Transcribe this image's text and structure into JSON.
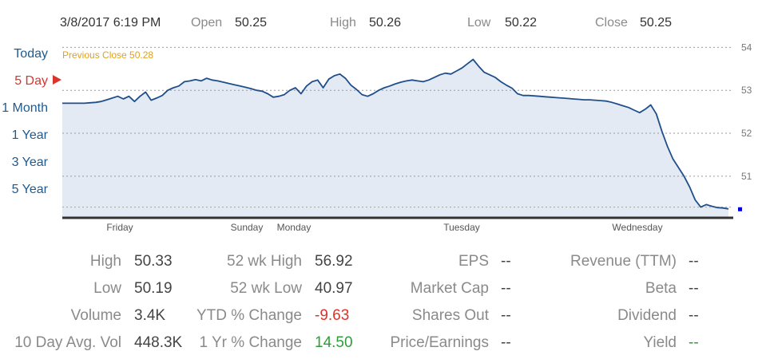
{
  "header": {
    "datetime": "3/8/2017 6:19 PM",
    "open_label": "Open",
    "open_value": "50.25",
    "high_label": "High",
    "high_value": "50.26",
    "low_label": "Low",
    "low_value": "50.22",
    "close_label": "Close",
    "close_value": "50.25"
  },
  "ranges": [
    "Today",
    "5 Day",
    "1 Month",
    "1 Year",
    "3 Year",
    "5 Year"
  ],
  "active_range": "5 Day",
  "chart_data": {
    "type": "area",
    "y_ticks": [
      "54",
      "53",
      "52",
      "51"
    ],
    "ylim": [
      50.05,
      54.1
    ],
    "x_labels": [
      "Friday",
      "Sunday",
      "Monday",
      "Tuesday",
      "Wednesday"
    ],
    "previous_close_label": "Previous Close 50.28",
    "previous_close": 50.28,
    "grid": true,
    "colors": {
      "line": "#1f4f8b",
      "fill": "#e4eaf3",
      "prev_close": "#e0a11b",
      "end_marker": "#0000dd"
    },
    "series": [
      {
        "x": [
          0,
          1,
          2,
          3,
          4,
          5,
          6,
          7,
          8,
          9,
          10,
          11,
          12,
          13,
          14,
          15,
          16,
          17,
          18,
          19,
          20,
          21,
          22,
          23,
          24,
          25,
          26,
          27,
          28,
          29,
          30,
          31,
          32,
          33,
          34,
          35,
          36,
          37,
          38,
          39,
          40,
          41,
          42,
          43,
          44,
          45,
          46,
          47,
          48,
          49,
          50,
          51,
          52,
          53,
          54,
          55,
          56,
          57,
          58,
          59,
          60,
          61,
          62,
          63,
          64,
          65,
          66,
          67,
          68,
          69,
          70,
          71,
          72,
          73,
          74,
          75,
          76,
          77,
          78,
          79,
          80,
          81,
          82,
          83,
          84,
          85,
          86,
          87,
          88,
          89,
          90,
          91,
          92,
          93,
          94,
          95,
          96,
          97,
          98,
          99,
          100,
          101,
          102,
          103,
          104,
          105,
          106,
          107,
          108,
          109,
          110,
          111,
          112,
          113,
          114,
          115,
          116,
          117,
          118,
          119,
          120
        ],
        "y": [
          52.7,
          52.7,
          52.7,
          52.7,
          52.7,
          52.71,
          52.72,
          52.74,
          52.78,
          52.82,
          52.86,
          52.8,
          52.86,
          52.74,
          52.86,
          52.96,
          52.77,
          52.82,
          52.88,
          53.0,
          53.06,
          53.1,
          53.2,
          53.22,
          53.25,
          53.22,
          53.28,
          53.24,
          53.22,
          53.19,
          53.16,
          53.13,
          53.1,
          53.07,
          53.04,
          53.0,
          52.98,
          52.92,
          52.84,
          52.86,
          52.9,
          53.0,
          53.06,
          52.92,
          53.1,
          53.2,
          53.24,
          53.06,
          53.26,
          53.34,
          53.38,
          53.28,
          53.12,
          53.02,
          52.9,
          52.86,
          52.92,
          53.0,
          53.06,
          53.1,
          53.15,
          53.19,
          53.22,
          53.24,
          53.22,
          53.2,
          53.24,
          53.3,
          53.36,
          53.4,
          53.38,
          53.45,
          53.52,
          53.62,
          53.72,
          53.56,
          53.42,
          53.36,
          53.3,
          53.2,
          53.12,
          53.05,
          52.92,
          52.88,
          52.88,
          52.87,
          52.86,
          52.85,
          52.84,
          52.83,
          52.82,
          52.81,
          52.8,
          52.79,
          52.78,
          52.78,
          52.77,
          52.76,
          52.75,
          52.72,
          52.68,
          52.64,
          52.6,
          52.54,
          52.48,
          52.56,
          52.66,
          52.45,
          52.05,
          51.7,
          51.4,
          51.2,
          51.0,
          50.75,
          50.45,
          50.28,
          50.34,
          50.3,
          50.27,
          50.26,
          50.24
        ]
      }
    ]
  },
  "stats": {
    "col1": [
      {
        "label": "High",
        "value": "50.33"
      },
      {
        "label": "Low",
        "value": "50.19"
      },
      {
        "label": "Volume",
        "value": "3.4K"
      },
      {
        "label": "10 Day Avg. Vol",
        "value": "448.3K"
      }
    ],
    "col2": [
      {
        "label": "52 wk High",
        "value": "56.92"
      },
      {
        "label": "52 wk Low",
        "value": "40.97"
      },
      {
        "label": "YTD % Change",
        "value": "-9.63"
      },
      {
        "label": "1 Yr % Change",
        "value": "14.50"
      }
    ],
    "col3": [
      {
        "label": "EPS",
        "value": "--"
      },
      {
        "label": "Market Cap",
        "value": "--"
      },
      {
        "label": "Shares Out",
        "value": "--"
      },
      {
        "label": "Price/Earnings",
        "value": "--"
      }
    ],
    "col4": [
      {
        "label": "Revenue (TTM)",
        "value": "--"
      },
      {
        "label": "Beta",
        "value": "--"
      },
      {
        "label": "Dividend",
        "value": "--"
      },
      {
        "label": "Yield",
        "value": "--"
      }
    ]
  }
}
